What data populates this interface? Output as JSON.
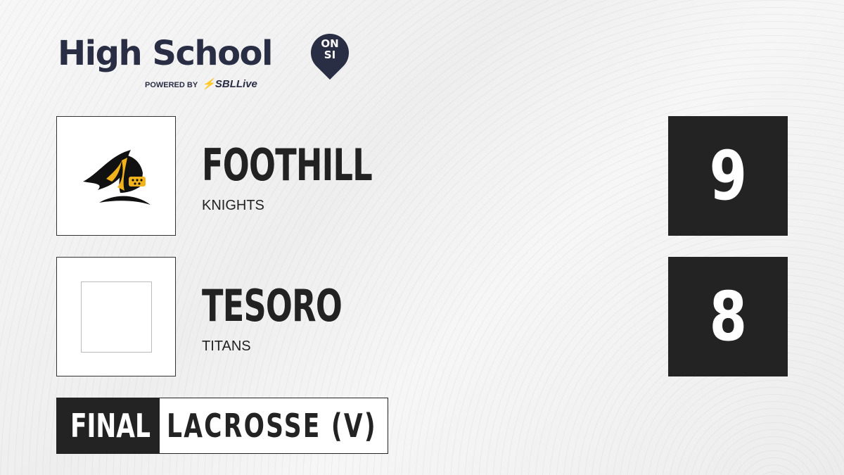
{
  "brand": {
    "title": "High School",
    "badge_top": "ON",
    "badge_bottom": "SI",
    "powered_by": "POWERED BY",
    "partner_a": "SBL",
    "partner_b": "ive",
    "partner_logo_text": "SBLive"
  },
  "teams": [
    {
      "name": "FOOTHILL",
      "mascot": "KNIGHTS",
      "score": "9",
      "logo_icon": "knight-helmet-icon"
    },
    {
      "name": "TESORO",
      "mascot": "TITANS",
      "score": "8",
      "logo_icon": "placeholder"
    }
  ],
  "game": {
    "status": "FINAL",
    "sport": "LACROSSE (V)"
  },
  "colors": {
    "brand_navy": "#2a2e45",
    "score_bg": "#232323",
    "accent_gold": "#f2b21b",
    "sblive_blue": "#1ea7e1"
  }
}
